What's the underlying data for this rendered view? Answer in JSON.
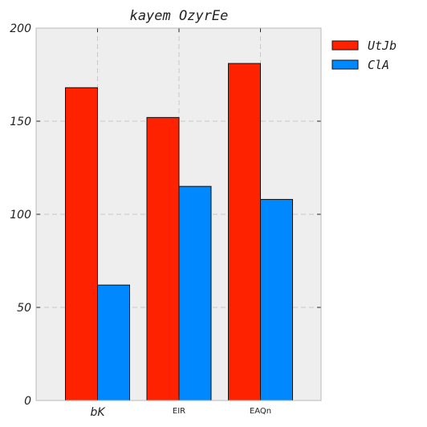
{
  "chart_data": {
    "type": "bar",
    "title": "kayem OzyrEe",
    "categories": [
      "bK",
      "EIR",
      "EAQn"
    ],
    "series": [
      {
        "name": "UtJb",
        "color": "#ff2200",
        "values": [
          168,
          152,
          181
        ]
      },
      {
        "name": "ClA",
        "color": "#0088ff",
        "values": [
          62,
          115,
          108
        ]
      }
    ],
    "ylim": [
      0,
      200
    ],
    "yticks": [
      0,
      50,
      100,
      150,
      200
    ],
    "grid": true,
    "legend": "outside-top-right"
  }
}
